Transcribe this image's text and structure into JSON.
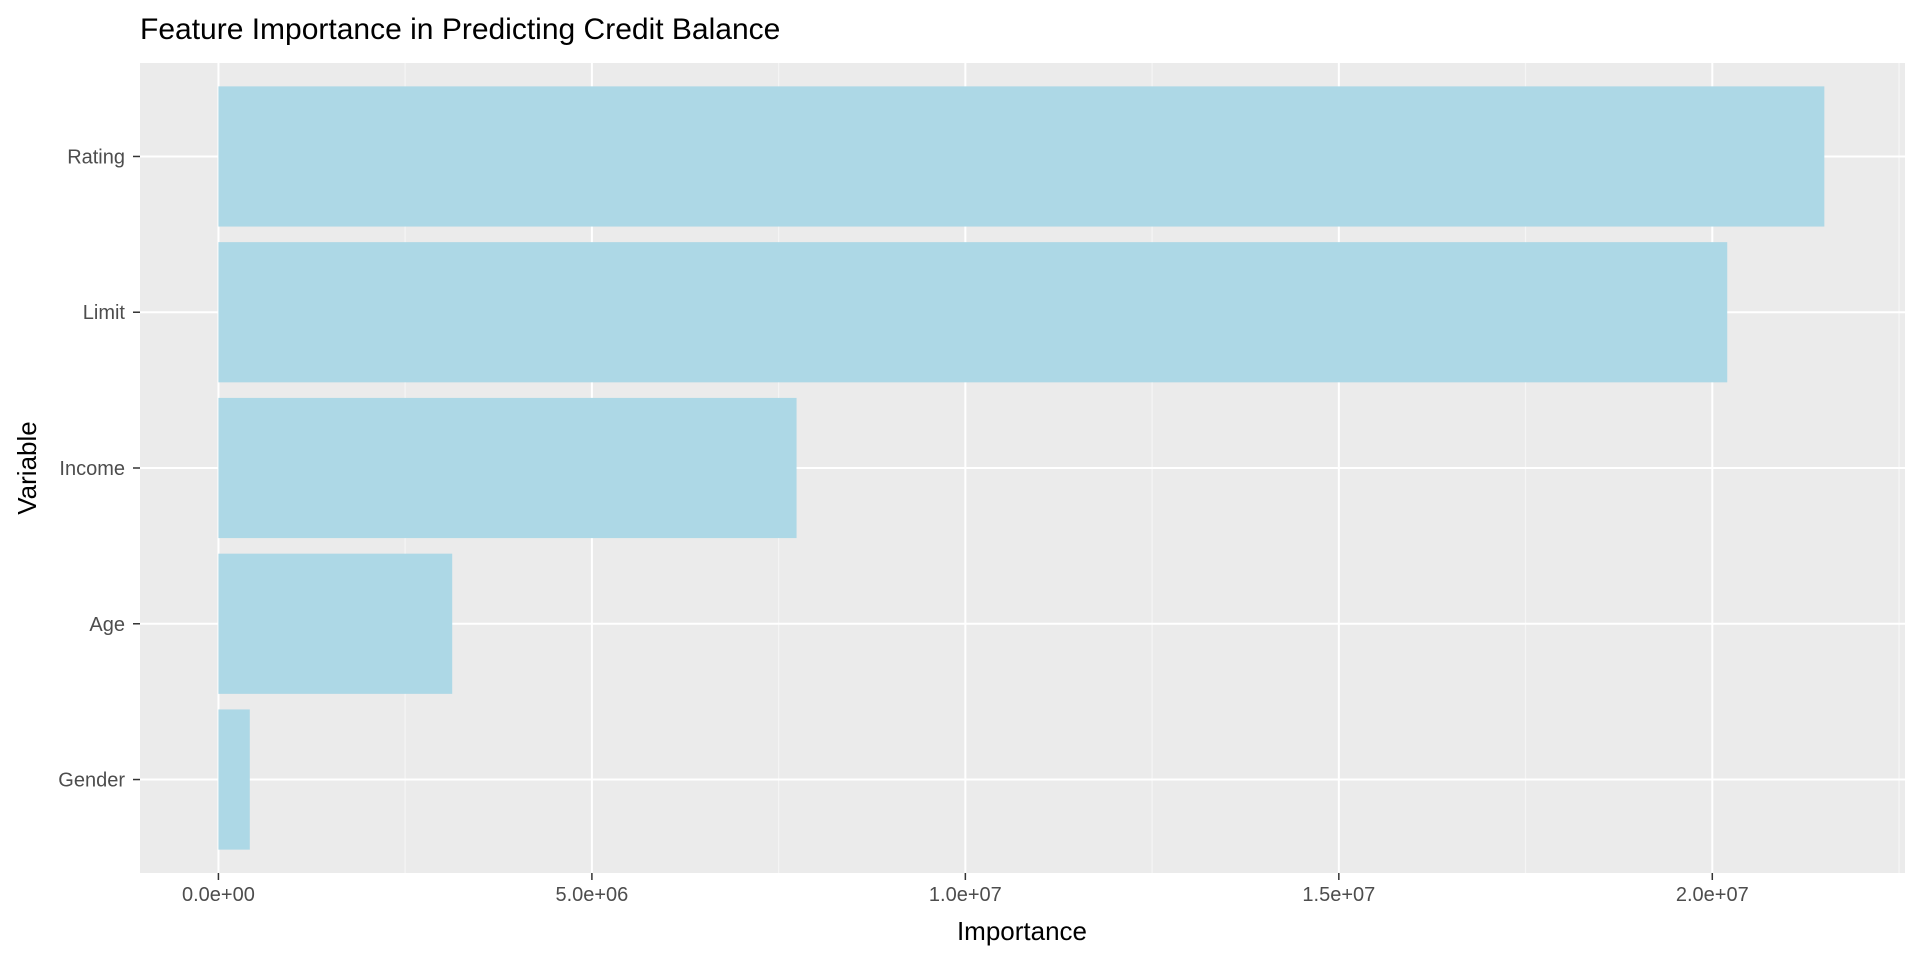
{
  "colors": {
    "panel_background": "#ebebeb",
    "grid_major": "#ffffff",
    "grid_minor": "#f5f5f5",
    "bar_fill": "#add8e6",
    "tick_mark": "#333333",
    "tick_label": "#4d4d4d",
    "text": "#000000"
  },
  "chart_data": {
    "type": "bar",
    "orientation": "horizontal",
    "title": "Feature Importance in Predicting Credit Balance",
    "xlabel": "Importance",
    "ylabel": "Variable",
    "categories": [
      "Gender",
      "Age",
      "Income",
      "Limit",
      "Rating"
    ],
    "values": [
      420000,
      3130000,
      7740000,
      20200000,
      21500000
    ],
    "xlim": [
      -1050000,
      22580000
    ],
    "x_ticks": [
      0,
      5000000,
      10000000,
      15000000,
      20000000
    ],
    "x_tick_labels": [
      "0.0e+00",
      "5.0e+06",
      "1.0e+07",
      "1.5e+07",
      "2.0e+07"
    ],
    "grid": true,
    "legend": "none"
  }
}
